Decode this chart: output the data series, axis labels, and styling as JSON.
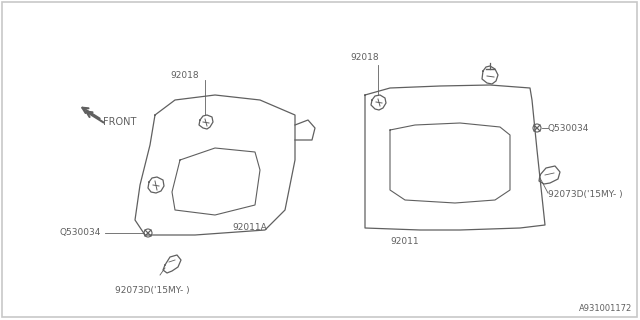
{
  "bg_color": "#ffffff",
  "border_color": "#c8c8c8",
  "line_color": "#606060",
  "text_color": "#606060",
  "diagram_number": "A931001172",
  "front_label": "FRONT",
  "left_visor": {
    "label_92018": "92018",
    "label_92011A": "92011A",
    "label_Q530034": "Q530034",
    "label_92073D": "92073D('15MY- )"
  },
  "right_visor": {
    "label_92018": "92018",
    "label_92011": "92011",
    "label_Q530034": "Q530034",
    "label_92073D": "92073D('15MY- )"
  }
}
